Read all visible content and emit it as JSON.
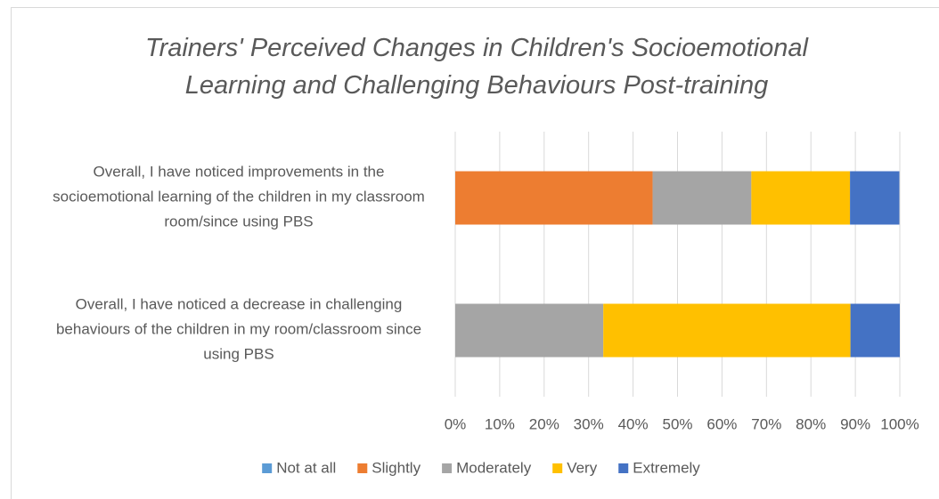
{
  "chart_data": {
    "type": "stacked-bar-horizontal",
    "title": "Trainers' Perceived Changes in Children's Socioemotional Learning and Challenging Behaviours Post-training",
    "categories": [
      "Overall, I have noticed improvements in the socioemotional learning of the children in my classroom room/since using PBS",
      "Overall, I have noticed a decrease in challenging behaviours of the children in my room/classroom since using PBS"
    ],
    "series": [
      {
        "name": "Not at all",
        "color": "#5b9bd5",
        "values": [
          0,
          0
        ]
      },
      {
        "name": "Slightly",
        "color": "#ed7d31",
        "values": [
          44.4,
          0
        ]
      },
      {
        "name": "Moderately",
        "color": "#a5a5a5",
        "values": [
          22.2,
          33.3
        ]
      },
      {
        "name": "Very",
        "color": "#ffc000",
        "values": [
          22.2,
          55.6
        ]
      },
      {
        "name": "Extremely",
        "color": "#4472c4",
        "values": [
          11.1,
          11.1
        ]
      }
    ],
    "xlim": [
      0,
      100
    ],
    "xticks": [
      {
        "value": 0,
        "label": "0%"
      },
      {
        "value": 10,
        "label": "10%"
      },
      {
        "value": 20,
        "label": "20%"
      },
      {
        "value": 30,
        "label": "30%"
      },
      {
        "value": 40,
        "label": "40%"
      },
      {
        "value": 50,
        "label": "50%"
      },
      {
        "value": 60,
        "label": "60%"
      },
      {
        "value": 70,
        "label": "70%"
      },
      {
        "value": 80,
        "label": "80%"
      },
      {
        "value": 90,
        "label": "90%"
      },
      {
        "value": 100,
        "label": "100%"
      }
    ],
    "grid": true,
    "legend": "bottom"
  }
}
